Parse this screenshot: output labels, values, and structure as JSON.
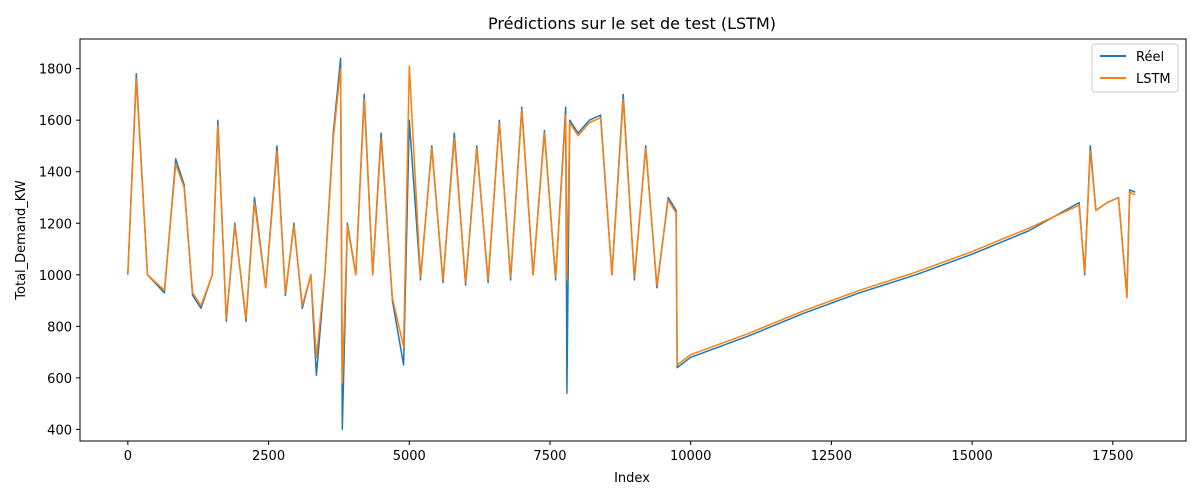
{
  "chart_data": {
    "type": "line",
    "title": "Prédictions sur le set de test (LSTM)",
    "xlabel": "Index",
    "ylabel": "Total_Demand_KW",
    "xlim": [
      -850,
      18800
    ],
    "ylim": [
      355,
      1915
    ],
    "x_ticks": [
      0,
      2500,
      5000,
      7500,
      10000,
      12500,
      15000,
      17500
    ],
    "x_tick_labels": [
      "0",
      "2500",
      "5000",
      "7500",
      "10000",
      "12500",
      "15000",
      "17500"
    ],
    "y_ticks": [
      400,
      600,
      800,
      1000,
      1200,
      1400,
      1600,
      1800
    ],
    "y_tick_labels": [
      "400",
      "600",
      "800",
      "1000",
      "1200",
      "1400",
      "1600",
      "1800"
    ],
    "legend_position": "top-right",
    "series": [
      {
        "name": "Réel",
        "color": "#1f77b4",
        "x": [
          0,
          150,
          350,
          650,
          850,
          1000,
          1150,
          1300,
          1500,
          1600,
          1750,
          1900,
          2100,
          2250,
          2450,
          2650,
          2800,
          2950,
          3100,
          3250,
          3350,
          3500,
          3650,
          3780,
          3810,
          3900,
          4050,
          4200,
          4350,
          4500,
          4700,
          4900,
          5000,
          5200,
          5400,
          5600,
          5800,
          6000,
          6200,
          6400,
          6600,
          6800,
          7000,
          7200,
          7400,
          7600,
          7780,
          7800,
          7850,
          8000,
          8200,
          8400,
          8600,
          8800,
          9000,
          9200,
          9400,
          9600,
          9740,
          9760,
          10000,
          11000,
          12000,
          13000,
          14000,
          15000,
          16000,
          16900,
          17000,
          17100,
          17200,
          17400,
          17600,
          17750,
          17800,
          17900
        ],
        "values": [
          1000,
          1780,
          1000,
          930,
          1450,
          1350,
          920,
          870,
          1000,
          1600,
          820,
          1200,
          820,
          1300,
          950,
          1500,
          920,
          1200,
          870,
          1000,
          610,
          1000,
          1550,
          1840,
          400,
          1200,
          1000,
          1700,
          1000,
          1550,
          900,
          650,
          1600,
          980,
          1500,
          970,
          1550,
          960,
          1500,
          970,
          1600,
          980,
          1650,
          1000,
          1560,
          980,
          1650,
          540,
          1600,
          1550,
          1600,
          1620,
          1000,
          1700,
          980,
          1500,
          950,
          1300,
          1250,
          640,
          680,
          760,
          850,
          930,
          1000,
          1080,
          1170,
          1280,
          1000,
          1500,
          1250,
          1280,
          1300,
          920,
          1330,
          1320
        ]
      },
      {
        "name": "LSTM",
        "color": "#ff7f0e",
        "x": [
          0,
          150,
          350,
          650,
          850,
          1000,
          1150,
          1300,
          1500,
          1600,
          1750,
          1900,
          2100,
          2250,
          2450,
          2650,
          2800,
          2950,
          3100,
          3250,
          3350,
          3500,
          3650,
          3780,
          3810,
          3900,
          4050,
          4200,
          4350,
          4500,
          4700,
          4900,
          5000,
          5200,
          5400,
          5600,
          5800,
          6000,
          6200,
          6400,
          6600,
          6800,
          7000,
          7200,
          7400,
          7600,
          7780,
          7800,
          7850,
          8000,
          8200,
          8400,
          8600,
          8800,
          9000,
          9200,
          9400,
          9600,
          9740,
          9760,
          10000,
          11000,
          12000,
          13000,
          14000,
          15000,
          16000,
          16900,
          17000,
          17100,
          17200,
          17400,
          17600,
          17750,
          17800,
          17900
        ],
        "values": [
          1000,
          1760,
          1000,
          940,
          1430,
          1340,
          930,
          880,
          1000,
          1580,
          830,
          1190,
          830,
          1280,
          950,
          1480,
          930,
          1190,
          880,
          1000,
          680,
          1000,
          1530,
          1800,
          580,
          1190,
          1000,
          1680,
          1000,
          1530,
          910,
          720,
          1810,
          990,
          1490,
          980,
          1530,
          970,
          1490,
          980,
          1590,
          990,
          1640,
          1000,
          1550,
          990,
          1620,
          980,
          1590,
          1540,
          1590,
          1610,
          1000,
          1680,
          990,
          1490,
          960,
          1290,
          1240,
          650,
          690,
          770,
          860,
          940,
          1010,
          1090,
          1180,
          1270,
          1010,
          1480,
          1250,
          1280,
          1300,
          910,
          1320,
          1310
        ]
      }
    ]
  }
}
